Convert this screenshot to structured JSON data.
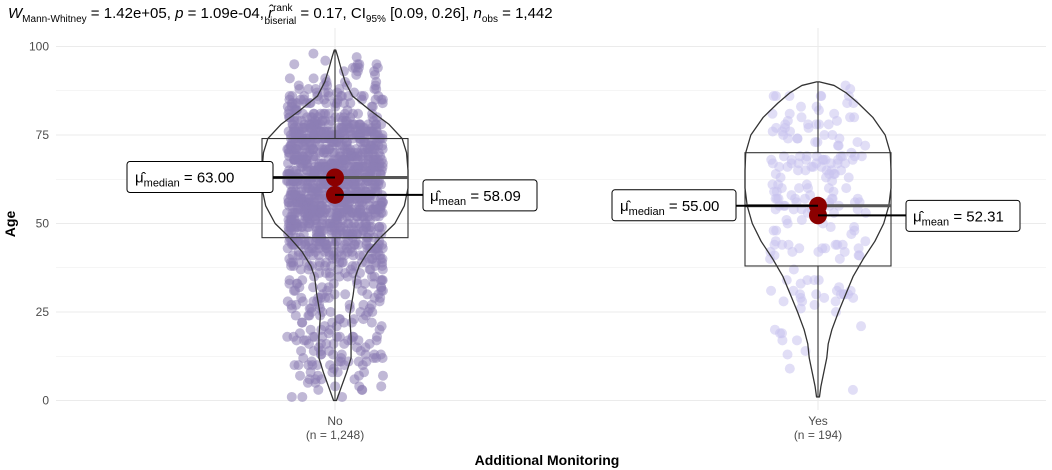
{
  "chart_data": {
    "type": "violin-box-scatter",
    "title": {
      "prefix": "W",
      "prefix_sub": "Mann-Whitney",
      "statistic": "1.42e+05",
      "p_label": "p",
      "p_value": "1.09e-04",
      "effect_symbol": "r̂",
      "effect_sup": "rank",
      "effect_sub": "biserial",
      "effect_value": "0.17",
      "ci_label": "CI",
      "ci_sub": "95%",
      "ci_value": "[0.09, 0.26]",
      "n_label": "n",
      "n_sub": "obs",
      "n_value": "1,442"
    },
    "xlabel": "Additional Monitoring",
    "ylabel": "Age",
    "ylim": [
      0,
      100
    ],
    "yticks": [
      0,
      25,
      50,
      75,
      100
    ],
    "grid": true,
    "mean_color": "#8b0000",
    "groups": [
      {
        "category": "No",
        "n_label": "(n = 1,248)",
        "point_color": "#8c7eb5",
        "box": {
          "q1": 46,
          "median": 63,
          "q3": 74,
          "whisker_low": 0,
          "whisker_high": 99
        },
        "mean": 58.09,
        "median_label": {
          "symbol": "μ̂",
          "sub": "median",
          "value": "63.00"
        },
        "mean_label": {
          "symbol": "μ̂",
          "sub": "mean",
          "value": "58.09"
        },
        "violin": [
          [
            0,
            0.02
          ],
          [
            4,
            0.09
          ],
          [
            8,
            0.16
          ],
          [
            12,
            0.22
          ],
          [
            18,
            0.22
          ],
          [
            24,
            0.2
          ],
          [
            30,
            0.25
          ],
          [
            35,
            0.28
          ],
          [
            38,
            0.33
          ],
          [
            42,
            0.45
          ],
          [
            46,
            0.62
          ],
          [
            50,
            0.82
          ],
          [
            55,
            0.95
          ],
          [
            60,
            1.0
          ],
          [
            65,
            1.0
          ],
          [
            70,
            0.98
          ],
          [
            74,
            0.92
          ],
          [
            78,
            0.74
          ],
          [
            82,
            0.48
          ],
          [
            86,
            0.24
          ],
          [
            90,
            0.14
          ],
          [
            94,
            0.08
          ],
          [
            97,
            0.04
          ],
          [
            99,
            0.01
          ]
        ]
      },
      {
        "category": "Yes",
        "n_label": "(n = 194)",
        "point_color": "#c8c3ee",
        "box": {
          "q1": 38,
          "median": 55,
          "q3": 70,
          "whisker_low": 1,
          "whisker_high": 90
        },
        "mean": 52.31,
        "median_label": {
          "symbol": "μ̂",
          "sub": "median",
          "value": "55.00"
        },
        "mean_label": {
          "symbol": "μ̂",
          "sub": "mean",
          "value": "52.31"
        },
        "violin": [
          [
            1,
            0.02
          ],
          [
            4,
            0.04
          ],
          [
            8,
            0.08
          ],
          [
            12,
            0.12
          ],
          [
            16,
            0.14
          ],
          [
            20,
            0.19
          ],
          [
            25,
            0.28
          ],
          [
            30,
            0.38
          ],
          [
            35,
            0.48
          ],
          [
            40,
            0.62
          ],
          [
            45,
            0.78
          ],
          [
            50,
            0.9
          ],
          [
            55,
            0.97
          ],
          [
            60,
            1.0
          ],
          [
            65,
            1.0
          ],
          [
            70,
            0.99
          ],
          [
            75,
            0.92
          ],
          [
            80,
            0.75
          ],
          [
            84,
            0.55
          ],
          [
            87,
            0.38
          ],
          [
            89,
            0.22
          ],
          [
            90,
            0.02
          ]
        ]
      }
    ]
  }
}
